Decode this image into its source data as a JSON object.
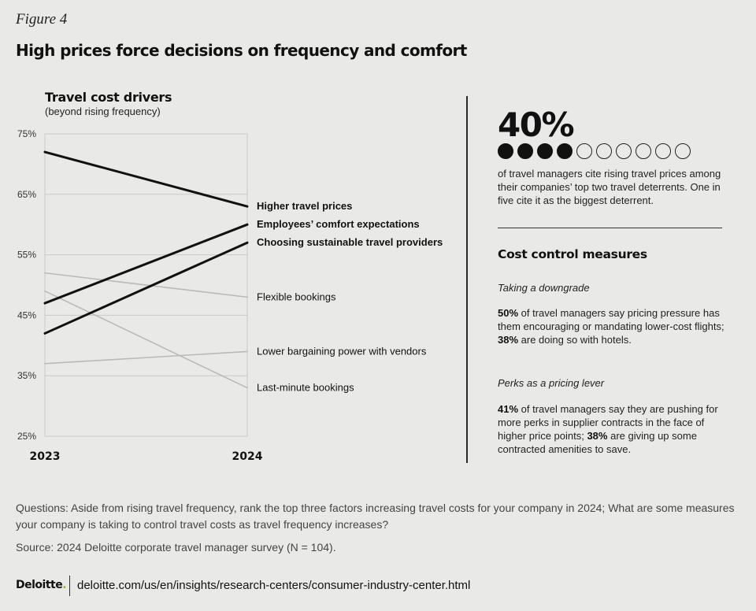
{
  "figure_label": "Figure 4",
  "headline": "High prices force decisions on frequency and comfort",
  "chart_data": {
    "type": "line",
    "title": "Travel cost drivers",
    "subtitle": "(beyond rising frequency)",
    "x": [
      "2023",
      "2024"
    ],
    "ylim": [
      25,
      75
    ],
    "yticks": [
      75,
      65,
      55,
      45,
      35,
      25
    ],
    "ytick_labels": [
      "75%",
      "65%",
      "55%",
      "45%",
      "35%",
      "25%"
    ],
    "grid": true,
    "series": [
      {
        "name": "Higher travel prices",
        "values": [
          72,
          63
        ],
        "color": "#111111",
        "emphasis": true
      },
      {
        "name": "Employees’ comfort expectations",
        "values": [
          47,
          60
        ],
        "color": "#111111",
        "emphasis": true
      },
      {
        "name": "Choosing sustainable travel providers",
        "values": [
          42,
          57
        ],
        "color": "#111111",
        "emphasis": true
      },
      {
        "name": "Flexible bookings",
        "values": [
          52,
          48
        ],
        "color": "#b9b9b9",
        "emphasis": false
      },
      {
        "name": "Lower bargaining power with vendors",
        "values": [
          37,
          39
        ],
        "color": "#b9b9b9",
        "emphasis": false
      },
      {
        "name": "Last-minute bookings",
        "values": [
          49,
          33
        ],
        "color": "#b9b9b9",
        "emphasis": false
      }
    ]
  },
  "stat": {
    "value": "40%",
    "filled_dots": 4,
    "total_dots": 10,
    "text": "of travel managers cite rising travel prices among their companies’ top two travel deterrents. One in five cite it as the biggest deterrent."
  },
  "cost_control": {
    "title": "Cost control measures",
    "downgrade": {
      "heading": "Taking a downgrade",
      "pct1": "50%",
      "text1": " of travel managers say pricing pressure has them encouraging or mandating lower-cost flights; ",
      "pct2": "38%",
      "text2": " are doing so with hotels."
    },
    "perks": {
      "heading": "Perks as a pricing lever",
      "pct1": "41%",
      "text1": " of travel managers say they are pushing for more perks in supplier contracts in the face of higher price points; ",
      "pct2": "38%",
      "text2": " are giving up some contracted amenities to save."
    }
  },
  "questions": "Questions: Aside from rising travel frequency, rank the top three factors increasing travel costs for your company in 2024; What are some measures your company is taking to control travel costs as travel frequency increases?",
  "source": "Source: 2024 Deloitte corporate travel manager survey (N = 104).",
  "footer": {
    "logo": "Deloitte",
    "logo_dot": ".",
    "url": "deloitte.com/us/en/insights/research-centers/consumer-industry-center.html"
  }
}
